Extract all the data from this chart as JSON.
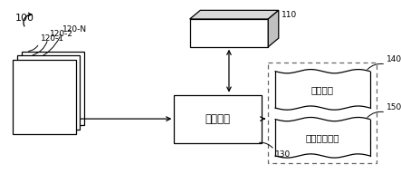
{
  "bg_color": "#ffffff",
  "label_100": "100",
  "label_110": "110",
  "label_120_1": "120-1",
  "label_120_2": "120-2",
  "label_120_N": "120-N",
  "label_130": "130",
  "label_140": "140",
  "label_150": "150",
  "text_130": "计算设备",
  "text_140": "预测结果",
  "text_150": "不确定性度量",
  "font_size_label": 6.5,
  "font_size_text": 7.5,
  "font_size_main_text": 8.5,
  "font_size_100": 8
}
